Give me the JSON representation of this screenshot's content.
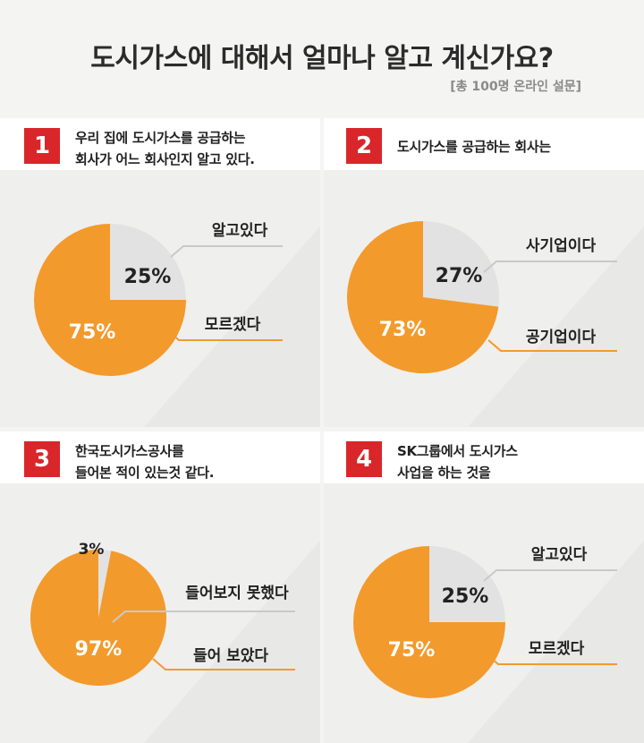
{
  "header": {
    "title": "도시가스에 대해서 얼마나 알고 계신가요?",
    "subtitle": "[총 100명 온라인 설문]"
  },
  "colors": {
    "orange": "#f39a2c",
    "gray": "#e2e2e2",
    "red": "#d9262a",
    "panel_light": "#efefee",
    "panel_dark": "#e8e8e7"
  },
  "chart_data": [
    {
      "type": "pie",
      "number": "1",
      "question": "우리 집에 도시가스를 공급하는\n회사가 어느 회사인지 알고 있다.",
      "slices": [
        {
          "label": "알고있다",
          "value": 25,
          "value_label": "25%",
          "color": "#e2e2e2"
        },
        {
          "label": "모르겠다",
          "value": 75,
          "value_label": "75%",
          "color": "#f39a2c"
        }
      ]
    },
    {
      "type": "pie",
      "number": "2",
      "question": "도시가스를 공급하는 회사는",
      "slices": [
        {
          "label": "사기업이다",
          "value": 27,
          "value_label": "27%",
          "color": "#e2e2e2"
        },
        {
          "label": "공기업이다",
          "value": 73,
          "value_label": "73%",
          "color": "#f39a2c"
        }
      ]
    },
    {
      "type": "pie",
      "number": "3",
      "question": "한국도시가스공사를\n들어본 적이 있는것 같다.",
      "slices": [
        {
          "label": "들어보지 못했다",
          "value": 3,
          "value_label": "3%",
          "color": "#e2e2e2"
        },
        {
          "label": "들어 보았다",
          "value": 97,
          "value_label": "97%",
          "color": "#f39a2c"
        }
      ]
    },
    {
      "type": "pie",
      "number": "4",
      "question": "SK그룹에서 도시가스\n사업을 하는 것을",
      "slices": [
        {
          "label": "알고있다",
          "value": 25,
          "value_label": "25%",
          "color": "#e2e2e2"
        },
        {
          "label": "모르겠다",
          "value": 75,
          "value_label": "75%",
          "color": "#f39a2c"
        }
      ]
    }
  ]
}
